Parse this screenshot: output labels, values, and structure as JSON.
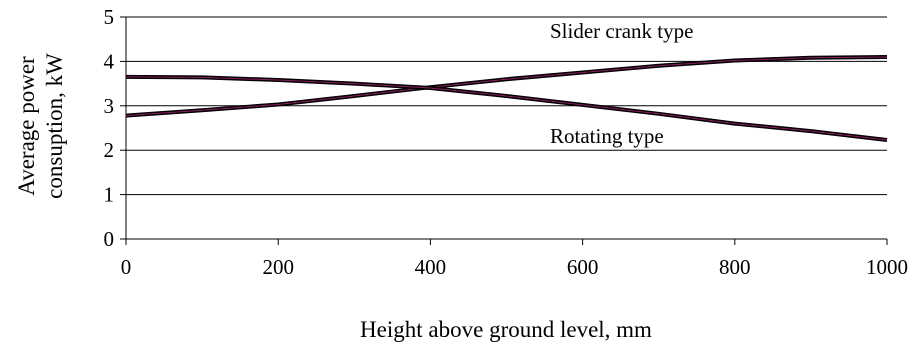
{
  "chart_data": {
    "type": "line",
    "title": "",
    "xlabel": "Height above ground level, mm",
    "ylabel_lines": [
      "Average power",
      "consuption, kW"
    ],
    "xlim": [
      0,
      1000
    ],
    "ylim": [
      0,
      5
    ],
    "x_ticks": [
      0,
      200,
      400,
      600,
      800,
      1000
    ],
    "y_ticks": [
      0,
      1,
      2,
      3,
      4,
      5
    ],
    "grid": "horizontal",
    "legend": "none",
    "series": [
      {
        "name": "Slider crank type",
        "x": [
          0,
          100,
          200,
          300,
          400,
          500,
          600,
          700,
          800,
          900,
          1000
        ],
        "values": [
          2.78,
          2.9,
          3.03,
          3.22,
          3.42,
          3.6,
          3.75,
          3.9,
          4.02,
          4.08,
          4.1
        ]
      },
      {
        "name": "Rotating type",
        "x": [
          0,
          100,
          200,
          300,
          400,
          500,
          600,
          700,
          800,
          900,
          1000
        ],
        "values": [
          3.65,
          3.64,
          3.58,
          3.5,
          3.4,
          3.22,
          3.02,
          2.82,
          2.6,
          2.43,
          2.23
        ]
      }
    ],
    "annotations": [
      {
        "text": "Slider crank type",
        "series": 0
      },
      {
        "text": "Rotating type",
        "series": 1
      }
    ],
    "colors": {
      "line": "#000000",
      "line_highlight": "#8b1f5e",
      "grid": "#000000",
      "axis": "#000000"
    }
  }
}
